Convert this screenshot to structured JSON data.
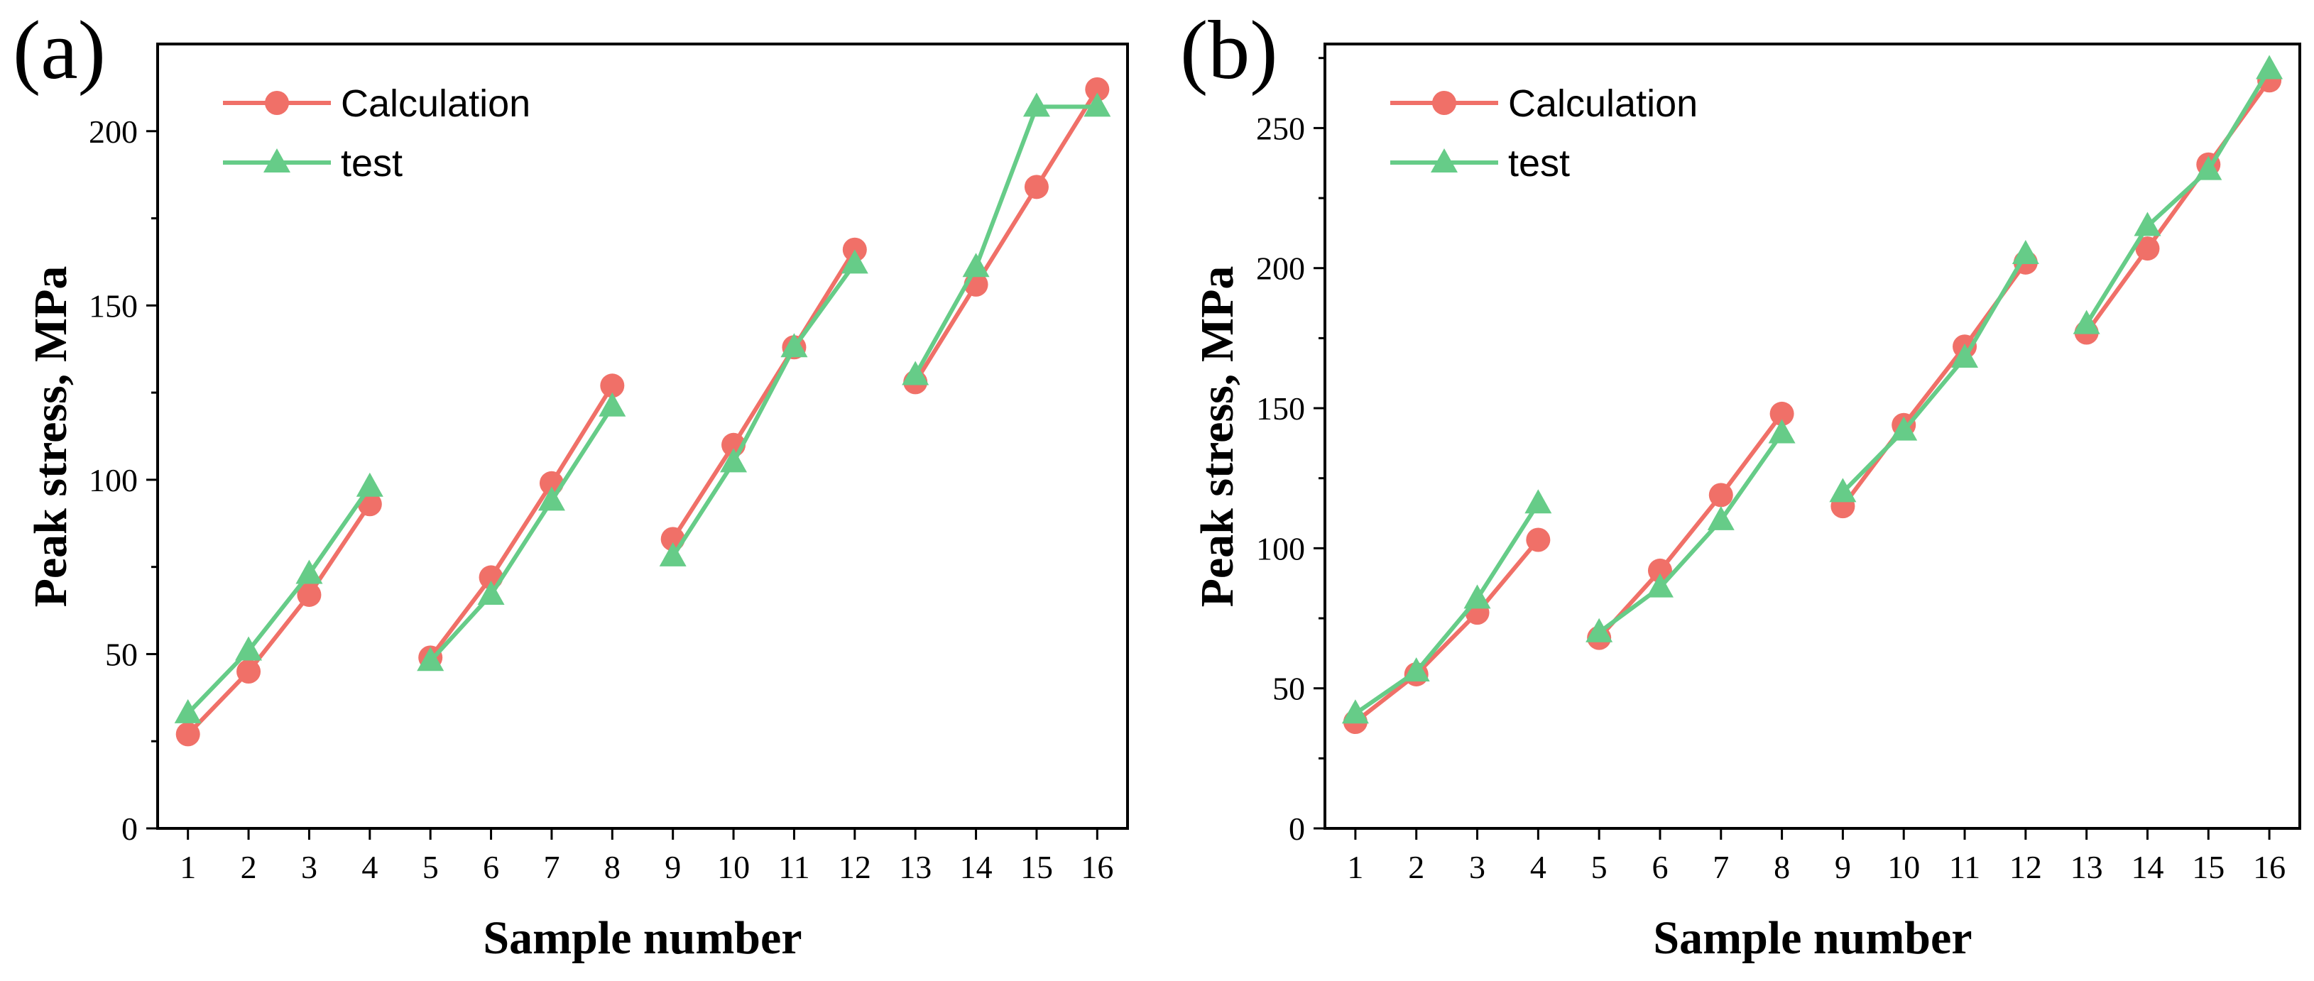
{
  "chart_data": [
    {
      "panel": "(a)",
      "type": "line",
      "xlabel": "Sample number",
      "ylabel": "Peak stress, MPa",
      "xlim": [
        0.5,
        16.5
      ],
      "ylim": [
        0,
        225
      ],
      "xticks": [
        1,
        2,
        3,
        4,
        5,
        6,
        7,
        8,
        9,
        10,
        11,
        12,
        13,
        14,
        15,
        16
      ],
      "yticks": [
        0,
        50,
        100,
        150,
        200
      ],
      "legend_position": "top-left",
      "segments": [
        [
          1,
          4
        ],
        [
          5,
          8
        ],
        [
          9,
          12
        ],
        [
          13,
          16
        ]
      ],
      "series": [
        {
          "name": "Calculation",
          "marker": "circle",
          "color": "#f07068",
          "x": [
            1,
            2,
            3,
            4,
            5,
            6,
            7,
            8,
            9,
            10,
            11,
            12,
            13,
            14,
            15,
            16
          ],
          "y": [
            27,
            45,
            67,
            93,
            49,
            72,
            99,
            127,
            83,
            110,
            138,
            166,
            128,
            156,
            184,
            212
          ]
        },
        {
          "name": "test",
          "marker": "triangle",
          "color": "#66cc88",
          "x": [
            1,
            2,
            3,
            4,
            5,
            6,
            7,
            8,
            9,
            10,
            11,
            12,
            13,
            14,
            15,
            16
          ],
          "y": [
            33,
            51,
            73,
            98,
            48,
            67,
            94,
            121,
            78,
            105,
            138,
            162,
            130,
            161,
            207,
            207
          ]
        }
      ]
    },
    {
      "panel": "(b)",
      "type": "line",
      "xlabel": "Sample number",
      "ylabel": "Peak stress, MPa",
      "xlim": [
        0.5,
        16.5
      ],
      "ylim": [
        0,
        280
      ],
      "xticks": [
        1,
        2,
        3,
        4,
        5,
        6,
        7,
        8,
        9,
        10,
        11,
        12,
        13,
        14,
        15,
        16
      ],
      "yticks": [
        0,
        50,
        100,
        150,
        200,
        250
      ],
      "legend_position": "top-left",
      "segments": [
        [
          1,
          4
        ],
        [
          5,
          8
        ],
        [
          9,
          12
        ],
        [
          13,
          16
        ]
      ],
      "series": [
        {
          "name": "Calculation",
          "marker": "circle",
          "color": "#f07068",
          "x": [
            1,
            2,
            3,
            4,
            5,
            6,
            7,
            8,
            9,
            10,
            11,
            12,
            13,
            14,
            15,
            16
          ],
          "y": [
            38,
            55,
            77,
            103,
            68,
            92,
            119,
            148,
            115,
            144,
            172,
            202,
            177,
            207,
            237,
            267
          ]
        },
        {
          "name": "test",
          "marker": "triangle",
          "color": "#66cc88",
          "x": [
            1,
            2,
            3,
            4,
            5,
            6,
            7,
            8,
            9,
            10,
            11,
            12,
            13,
            14,
            15,
            16
          ],
          "y": [
            41,
            56,
            82,
            116,
            70,
            86,
            110,
            141,
            120,
            142,
            168,
            205,
            180,
            215,
            235,
            271
          ]
        }
      ]
    }
  ]
}
